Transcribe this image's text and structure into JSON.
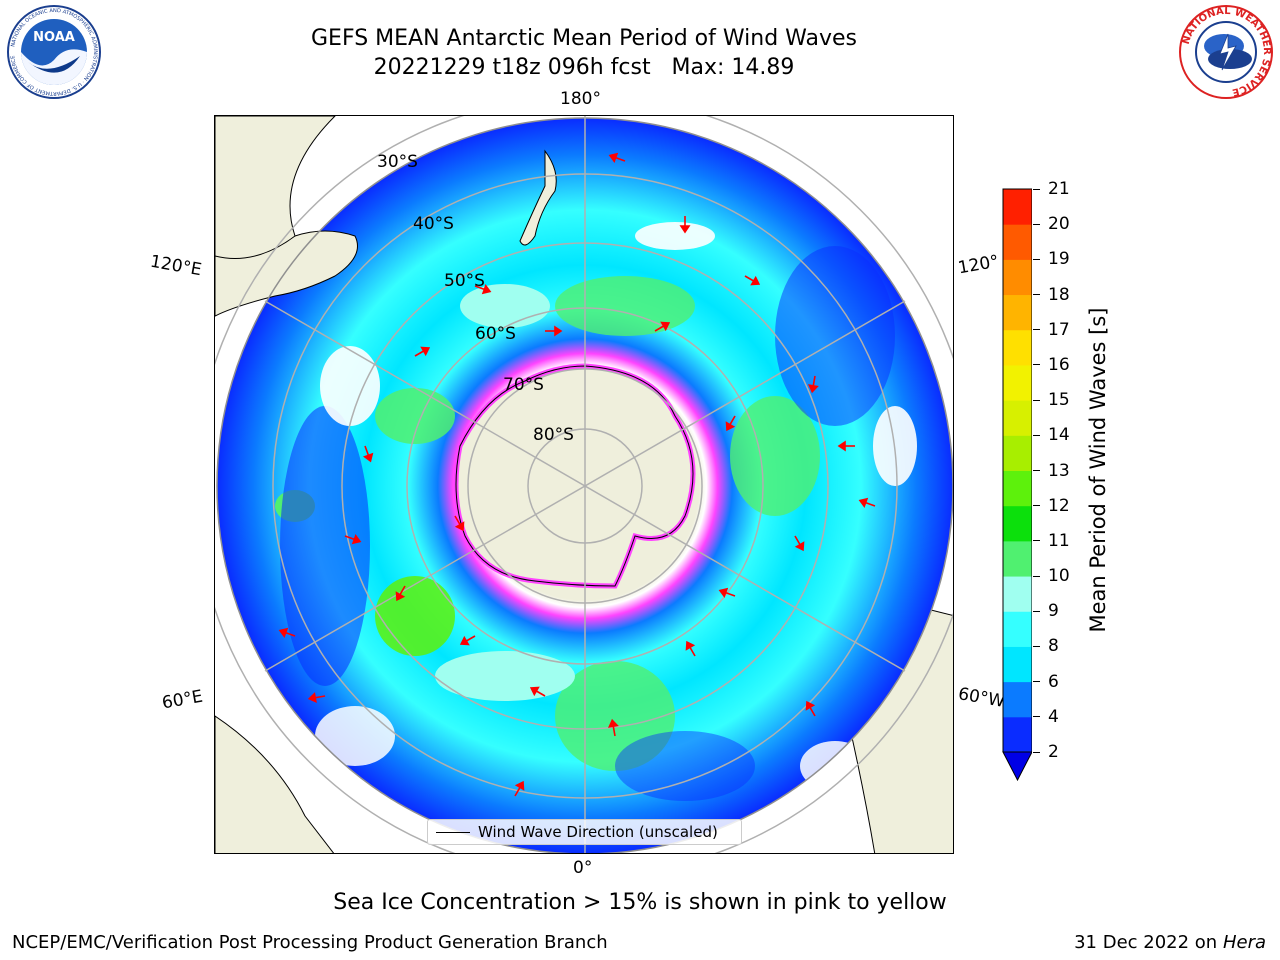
{
  "title": {
    "line1": "GEFS MEAN Antarctic Mean Period of Wind Waves",
    "line2": "20221229 t18z 096h fcst   Max: 14.89"
  },
  "logos": {
    "left": {
      "name": "NOAA",
      "text": "NOAA",
      "ring_text": "NATIONAL OCEANIC AND ATMOSPHERIC ADMINISTRATION · U.S. DEPARTMENT OF COMMERCE"
    },
    "right": {
      "name": "National Weather Service",
      "ring_text": "NATIONAL WEATHER SERVICE"
    }
  },
  "map": {
    "projection": "south-polar-stereographic",
    "longitude_labels": {
      "top": "180°",
      "left_upper": "120°E",
      "right_upper": "120°",
      "left_lower": "60°E",
      "right_lower": "60°W",
      "bottom": "0°"
    },
    "latitude_labels": [
      "30°S",
      "40°S",
      "50°S",
      "60°S",
      "70°S",
      "80°S"
    ],
    "legend": "Wind Wave Direction (unscaled)",
    "colors": {
      "land": "#efefdc",
      "ice_edge": "#ff44ff",
      "arrow": "#ff0000",
      "grid": "#b0b0b0"
    }
  },
  "colorbar": {
    "label": "Mean Period of Wind Waves [s]",
    "ticks": [
      "2",
      "4",
      "6",
      "8",
      "9",
      "10",
      "11",
      "12",
      "13",
      "14",
      "15",
      "16",
      "17",
      "18",
      "19",
      "20",
      "21"
    ],
    "colors": [
      "#0a2cff",
      "#0b7bff",
      "#00e6ff",
      "#35ffff",
      "#a0fff0",
      "#50f070",
      "#0ce00c",
      "#5df10c",
      "#a8ee00",
      "#d7f000",
      "#f2f200",
      "#ffe000",
      "#ffb400",
      "#ff8c00",
      "#ff5a00",
      "#ff2000"
    ],
    "extend_min": true,
    "under_color": "#0000e6"
  },
  "bottom_note": "Sea Ice Concentration > 15% is shown in pink to yellow",
  "footer": {
    "left": "NCEP/EMC/Verification Post Processing Product Generation Branch",
    "right_date": "31 Dec 2022 on",
    "right_host": "Hera"
  }
}
